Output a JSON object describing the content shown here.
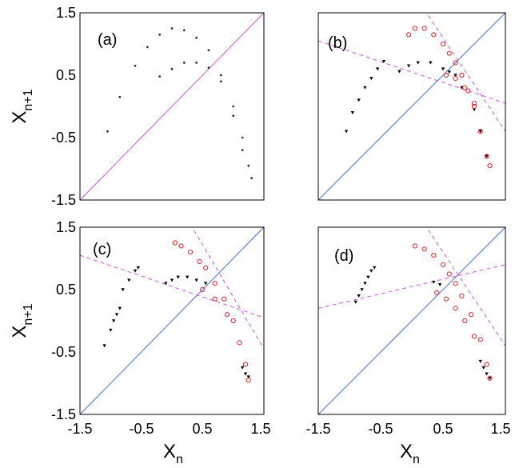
{
  "chart_data": [
    {
      "type": "scatter",
      "panel": "(a)",
      "xlim": [
        -1.5,
        1.5
      ],
      "ylim": [
        -1.5,
        1.5
      ],
      "xticks": [],
      "yticks": [
        "-1.5",
        "-0.5",
        "0.5",
        "1.5"
      ],
      "xlabel": "",
      "ylabel": "X_{n+1}",
      "diagonal_color": "#d154e6",
      "series": [
        {
          "name": "attractor upper branch",
          "marker": "dot",
          "color": "#333333",
          "x": [
            -1.05,
            -0.85,
            -0.6,
            -0.4,
            -0.2,
            0.0,
            0.2,
            0.4,
            0.6,
            0.8,
            1.0,
            1.15,
            1.3
          ],
          "y": [
            -0.4,
            0.15,
            0.65,
            0.95,
            1.15,
            1.25,
            1.22,
            1.1,
            0.9,
            0.5,
            -0.15,
            -0.7,
            -1.15
          ]
        },
        {
          "name": "attractor lower branch",
          "marker": "dot",
          "color": "#333333",
          "x": [
            -0.2,
            0.0,
            0.2,
            0.4,
            0.6,
            0.8,
            1.0,
            1.15,
            1.25
          ],
          "y": [
            0.48,
            0.6,
            0.7,
            0.7,
            0.62,
            0.4,
            0.0,
            -0.5,
            -0.95
          ]
        }
      ],
      "lines": []
    },
    {
      "type": "scatter",
      "panel": "(b)",
      "xlim": [
        -1.5,
        1.5
      ],
      "ylim": [
        -1.5,
        1.5
      ],
      "xticks": [],
      "yticks": [],
      "xlabel": "",
      "ylabel": "",
      "diagonal_color": "#3f6fd8",
      "series": [
        {
          "name": "black triangles",
          "marker": "triangle",
          "color": "#000000",
          "x": [
            -1.05,
            -0.95,
            -0.85,
            -0.75,
            -0.65,
            -0.55,
            -0.45,
            -0.2,
            -0.05,
            0.1,
            0.3,
            0.5,
            0.6,
            0.7,
            0.8,
            1.0,
            1.1,
            1.2
          ],
          "y": [
            -0.4,
            -0.1,
            0.1,
            0.3,
            0.45,
            0.6,
            0.72,
            0.56,
            0.65,
            0.7,
            0.7,
            0.6,
            0.55,
            0.5,
            0.3,
            -0.05,
            -0.4,
            -0.8
          ]
        },
        {
          "name": "red circles",
          "marker": "circle",
          "color": "#e8202a",
          "x": [
            -0.05,
            0.05,
            0.2,
            0.35,
            0.5,
            0.6,
            0.7,
            0.8,
            0.9,
            1.0,
            1.1,
            1.2,
            1.25,
            0.55,
            0.7,
            0.85,
            1.0
          ],
          "y": [
            1.15,
            1.25,
            1.25,
            1.15,
            1.0,
            0.85,
            0.7,
            0.5,
            0.25,
            0.0,
            -0.4,
            -0.8,
            -0.95,
            0.5,
            0.45,
            0.3,
            0.05
          ]
        }
      ],
      "lines": [
        {
          "name": "dashed line 1",
          "style": "dashed",
          "color": "#d154e6",
          "points": [
            [
              -1.5,
              1.05
            ],
            [
              1.5,
              0.05
            ]
          ]
        },
        {
          "name": "dashed line 2",
          "style": "dashed",
          "color": "#d154e6",
          "points": [
            [
              0.2,
              1.55
            ],
            [
              1.5,
              -0.4
            ]
          ]
        }
      ]
    },
    {
      "type": "scatter",
      "panel": "(c)",
      "xlim": [
        -1.5,
        1.5
      ],
      "ylim": [
        -1.5,
        1.5
      ],
      "xticks": [
        "-1.5",
        "-0.5",
        "0.5",
        "1.5"
      ],
      "yticks": [
        "-1.5",
        "-0.5",
        "0.5",
        "1.5"
      ],
      "xlabel": "X_n",
      "ylabel": "X_{n+1}",
      "diagonal_color": "#3f6fd8",
      "series": [
        {
          "name": "black triangles",
          "marker": "triangle",
          "color": "#000000",
          "x": [
            -1.1,
            -1.0,
            -0.95,
            -0.9,
            -0.85,
            -0.8,
            -0.7,
            -0.6,
            -0.55,
            -0.1,
            0.0,
            0.1,
            0.25,
            0.4,
            0.55,
            1.15,
            1.2,
            1.25
          ],
          "y": [
            -0.4,
            -0.15,
            0.0,
            0.1,
            0.2,
            0.5,
            0.65,
            0.8,
            0.85,
            0.6,
            0.65,
            0.7,
            0.7,
            0.65,
            0.6,
            -0.75,
            -0.85,
            -0.9
          ]
        },
        {
          "name": "red circles",
          "marker": "circle",
          "color": "#e8202a",
          "x": [
            0.05,
            0.15,
            0.3,
            0.45,
            0.55,
            0.7,
            0.85,
            1.0,
            1.1,
            1.2,
            1.25,
            0.5,
            0.7,
            0.9
          ],
          "y": [
            1.25,
            1.2,
            1.1,
            0.95,
            0.85,
            0.6,
            0.35,
            0.0,
            -0.35,
            -0.7,
            -0.95,
            0.5,
            0.35,
            0.1
          ]
        }
      ],
      "lines": [
        {
          "name": "dashed line 1",
          "style": "dashed",
          "color": "#d154e6",
          "points": [
            [
              -1.5,
              1.05
            ],
            [
              1.5,
              0.05
            ]
          ]
        },
        {
          "name": "dashed line 2",
          "style": "dashed",
          "color": "#d154e6",
          "points": [
            [
              0.3,
              1.55
            ],
            [
              1.5,
              -0.45
            ]
          ]
        }
      ]
    },
    {
      "type": "scatter",
      "panel": "(d)",
      "xlim": [
        -1.5,
        1.5
      ],
      "ylim": [
        -1.5,
        1.5
      ],
      "xticks": [
        "-1.5",
        "-0.5",
        "0.5",
        "1.5"
      ],
      "yticks": [],
      "xlabel": "X_n",
      "ylabel": "",
      "diagonal_color": "#3f6fd8",
      "series": [
        {
          "name": "black triangles",
          "marker": "triangle",
          "color": "#000000",
          "x": [
            -0.9,
            -0.85,
            -0.8,
            -0.75,
            -0.7,
            -0.65,
            -0.6,
            0.35,
            0.45,
            1.1,
            1.15,
            1.2,
            1.25
          ],
          "y": [
            0.3,
            0.4,
            0.5,
            0.6,
            0.7,
            0.8,
            0.85,
            0.62,
            0.58,
            -0.65,
            -0.75,
            -0.85,
            -0.92
          ]
        },
        {
          "name": "red circles",
          "marker": "circle",
          "color": "#e8202a",
          "x": [
            0.05,
            0.2,
            0.35,
            0.5,
            0.6,
            0.7,
            0.8,
            0.95,
            1.1,
            1.2,
            1.25,
            0.4,
            0.55,
            0.7,
            0.85,
            1.0
          ],
          "y": [
            1.2,
            1.15,
            1.05,
            0.9,
            0.75,
            0.6,
            0.4,
            0.1,
            -0.3,
            -0.7,
            -0.92,
            0.45,
            0.35,
            0.2,
            0.0,
            -0.25
          ]
        }
      ],
      "lines": [
        {
          "name": "dashed line 1",
          "style": "dashed",
          "color": "#d154e6",
          "points": [
            [
              -1.5,
              0.2
            ],
            [
              1.5,
              0.9
            ]
          ]
        },
        {
          "name": "dashed line 2",
          "style": "dashed",
          "color": "#d154e6",
          "points": [
            [
              0.2,
              1.55
            ],
            [
              1.5,
              -0.4
            ]
          ]
        }
      ]
    }
  ]
}
